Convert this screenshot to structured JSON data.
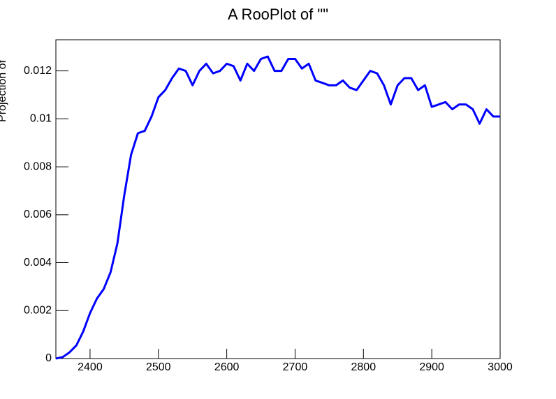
{
  "chart_data": {
    "type": "line",
    "title": "A RooPlot of \"\"",
    "y_label": "Projection of",
    "x": [
      2350,
      2360,
      2370,
      2380,
      2390,
      2400,
      2410,
      2420,
      2430,
      2440,
      2450,
      2460,
      2470,
      2480,
      2490,
      2500,
      2510,
      2520,
      2530,
      2540,
      2550,
      2560,
      2570,
      2580,
      2590,
      2600,
      2610,
      2620,
      2630,
      2640,
      2650,
      2660,
      2670,
      2680,
      2690,
      2700,
      2710,
      2720,
      2730,
      2740,
      2750,
      2760,
      2770,
      2780,
      2790,
      2800,
      2810,
      2820,
      2830,
      2840,
      2850,
      2860,
      2870,
      2880,
      2890,
      2900,
      2910,
      2920,
      2930,
      2940,
      2950,
      2960,
      2970,
      2980,
      2990,
      3000
    ],
    "series": [
      {
        "color": "#0000ff",
        "values": [
          0,
          6e-05,
          0.00026,
          0.00055,
          0.00113,
          0.0019,
          0.0025,
          0.0029,
          0.0036,
          0.0048,
          0.0068,
          0.0085,
          0.0094,
          0.0095,
          0.0101,
          0.0109,
          0.0112,
          0.0117,
          0.0121,
          0.012,
          0.0114,
          0.012,
          0.0123,
          0.0119,
          0.012,
          0.0123,
          0.0122,
          0.0116,
          0.0123,
          0.012,
          0.0125,
          0.0126,
          0.012,
          0.012,
          0.0125,
          0.0125,
          0.0121,
          0.0123,
          0.0116,
          0.0115,
          0.0114,
          0.0114,
          0.0116,
          0.0113,
          0.0112,
          0.0116,
          0.012,
          0.0119,
          0.0114,
          0.0106,
          0.0114,
          0.0117,
          0.0117,
          0.0112,
          0.0114,
          0.0105,
          0.0106,
          0.0107,
          0.0104,
          0.0106,
          0.0106,
          0.0104,
          0.0098,
          0.0104,
          0.0101,
          0.0101
        ]
      }
    ],
    "xlim": [
      2350,
      3000
    ],
    "xticks": [
      2400,
      2500,
      2600,
      2700,
      2800,
      2900,
      3000
    ],
    "ylim": [
      0,
      0.0133
    ],
    "yticks": [
      0,
      0.002,
      0.004,
      0.006,
      0.008,
      0.01,
      0.012
    ]
  }
}
